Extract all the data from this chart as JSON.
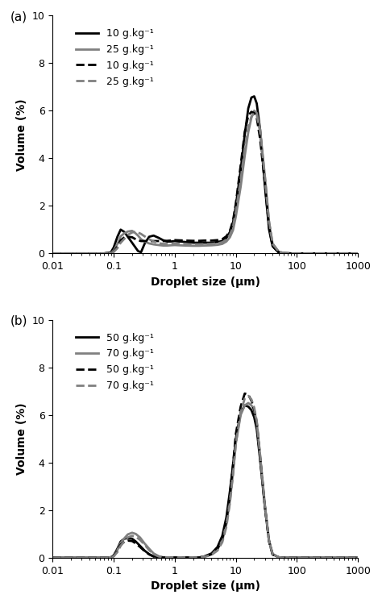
{
  "panel_a": {
    "label": "(a)",
    "legend": [
      {
        "label": "10 g.kg⁻¹",
        "color": "#000000",
        "linestyle": "solid",
        "linewidth": 2.0
      },
      {
        "label": "25 g.kg⁻¹",
        "color": "#808080",
        "linestyle": "solid",
        "linewidth": 2.0
      },
      {
        "label": "10 g.kg⁻¹",
        "color": "#000000",
        "linestyle": "dashed",
        "linewidth": 2.0
      },
      {
        "label": "25 g.kg⁻¹",
        "color": "#808080",
        "linestyle": "dashed",
        "linewidth": 2.0
      }
    ],
    "curves": [
      {
        "color": "#000000",
        "linestyle": "solid",
        "linewidth": 2.0,
        "x": [
          0.01,
          0.07,
          0.09,
          0.1,
          0.115,
          0.13,
          0.15,
          0.17,
          0.2,
          0.22,
          0.25,
          0.28,
          0.32,
          0.38,
          0.45,
          0.55,
          0.65,
          0.75,
          0.85,
          1.0,
          1.2,
          1.5,
          2.0,
          2.5,
          3.0,
          4.0,
          5.0,
          6.0,
          7.0,
          8.0,
          9.0,
          10.0,
          12.0,
          14.0,
          16.0,
          18.0,
          20.0,
          22.0,
          25.0,
          30.0,
          35.0,
          40.0,
          50.0,
          60.0,
          80.0,
          100.0,
          200.0,
          1000.0
        ],
        "y": [
          0,
          0,
          0.05,
          0.25,
          0.7,
          1.0,
          0.9,
          0.7,
          0.45,
          0.3,
          0.1,
          0.05,
          0.4,
          0.7,
          0.75,
          0.65,
          0.55,
          0.5,
          0.5,
          0.52,
          0.5,
          0.48,
          0.45,
          0.45,
          0.45,
          0.45,
          0.48,
          0.52,
          0.65,
          0.9,
          1.3,
          2.0,
          3.5,
          5.0,
          6.1,
          6.55,
          6.6,
          6.3,
          5.2,
          2.8,
          1.0,
          0.3,
          0.05,
          0.01,
          0.0,
          0.0,
          0.0,
          0.0
        ]
      },
      {
        "color": "#808080",
        "linestyle": "solid",
        "linewidth": 2.0,
        "x": [
          0.01,
          0.07,
          0.09,
          0.1,
          0.115,
          0.13,
          0.15,
          0.17,
          0.2,
          0.22,
          0.25,
          0.28,
          0.32,
          0.38,
          0.45,
          0.55,
          0.65,
          0.75,
          0.85,
          1.0,
          1.2,
          1.5,
          2.0,
          2.5,
          3.0,
          4.0,
          5.0,
          6.0,
          7.0,
          8.0,
          9.0,
          10.0,
          12.0,
          14.0,
          16.0,
          18.0,
          20.0,
          22.0,
          25.0,
          30.0,
          35.0,
          40.0,
          50.0,
          60.0,
          80.0,
          100.0,
          200.0,
          1000.0
        ],
        "y": [
          0,
          0,
          0.02,
          0.12,
          0.4,
          0.72,
          0.85,
          0.92,
          0.95,
          0.88,
          0.75,
          0.6,
          0.5,
          0.42,
          0.38,
          0.35,
          0.33,
          0.33,
          0.34,
          0.35,
          0.34,
          0.33,
          0.32,
          0.32,
          0.33,
          0.34,
          0.36,
          0.4,
          0.5,
          0.68,
          0.98,
          1.55,
          2.8,
          4.1,
          5.1,
          5.7,
          6.0,
          5.9,
          5.2,
          3.2,
          1.3,
          0.4,
          0.08,
          0.02,
          0.0,
          0.0,
          0.0,
          0.0
        ]
      },
      {
        "color": "#000000",
        "linestyle": "dashed",
        "linewidth": 2.0,
        "x": [
          0.01,
          0.07,
          0.09,
          0.1,
          0.115,
          0.13,
          0.15,
          0.17,
          0.2,
          0.22,
          0.25,
          0.28,
          0.32,
          0.38,
          0.45,
          0.55,
          0.65,
          0.75,
          0.85,
          1.0,
          1.2,
          1.5,
          2.0,
          2.5,
          3.0,
          4.0,
          5.0,
          6.0,
          7.0,
          8.0,
          9.0,
          10.0,
          12.0,
          14.0,
          16.0,
          18.0,
          20.0,
          22.0,
          25.0,
          30.0,
          35.0,
          40.0,
          50.0,
          60.0,
          80.0,
          100.0,
          200.0,
          1000.0
        ],
        "y": [
          0,
          0,
          0.02,
          0.08,
          0.28,
          0.55,
          0.68,
          0.7,
          0.68,
          0.62,
          0.55,
          0.52,
          0.52,
          0.52,
          0.52,
          0.52,
          0.52,
          0.53,
          0.54,
          0.56,
          0.55,
          0.54,
          0.53,
          0.53,
          0.54,
          0.54,
          0.56,
          0.6,
          0.72,
          0.95,
          1.38,
          2.1,
          3.7,
          5.1,
          5.8,
          5.95,
          5.9,
          5.7,
          4.8,
          2.9,
          1.1,
          0.3,
          0.05,
          0.01,
          0.0,
          0.0,
          0.0,
          0.0
        ]
      },
      {
        "color": "#808080",
        "linestyle": "dashed",
        "linewidth": 2.0,
        "x": [
          0.01,
          0.07,
          0.09,
          0.1,
          0.115,
          0.13,
          0.15,
          0.17,
          0.2,
          0.22,
          0.25,
          0.28,
          0.32,
          0.38,
          0.45,
          0.55,
          0.65,
          0.75,
          0.85,
          1.0,
          1.2,
          1.5,
          2.0,
          2.5,
          3.0,
          4.0,
          5.0,
          6.0,
          7.0,
          8.0,
          9.0,
          10.0,
          12.0,
          14.0,
          16.0,
          18.0,
          20.0,
          22.0,
          25.0,
          30.0,
          35.0,
          40.0,
          50.0,
          60.0,
          80.0,
          100.0,
          200.0,
          1000.0
        ],
        "y": [
          0,
          0,
          0.02,
          0.07,
          0.22,
          0.45,
          0.62,
          0.78,
          0.88,
          0.9,
          0.88,
          0.82,
          0.72,
          0.6,
          0.5,
          0.43,
          0.4,
          0.4,
          0.4,
          0.41,
          0.4,
          0.39,
          0.38,
          0.38,
          0.39,
          0.4,
          0.42,
          0.47,
          0.58,
          0.78,
          1.12,
          1.75,
          3.1,
          4.4,
          5.3,
          5.75,
          5.9,
          5.82,
          5.1,
          3.2,
          1.35,
          0.42,
          0.08,
          0.02,
          0.0,
          0.0,
          0.0,
          0.0
        ]
      }
    ]
  },
  "panel_b": {
    "label": "(b)",
    "legend": [
      {
        "label": "50 g.kg⁻¹",
        "color": "#000000",
        "linestyle": "solid",
        "linewidth": 2.0
      },
      {
        "label": "70 g.kg⁻¹",
        "color": "#808080",
        "linestyle": "solid",
        "linewidth": 2.0
      },
      {
        "label": "50 g.kg⁻¹",
        "color": "#000000",
        "linestyle": "dashed",
        "linewidth": 2.0
      },
      {
        "label": "70 g.kg⁻¹",
        "color": "#808080",
        "linestyle": "dashed",
        "linewidth": 2.0
      }
    ],
    "curves": [
      {
        "color": "#000000",
        "linestyle": "solid",
        "linewidth": 2.0,
        "x": [
          0.01,
          0.07,
          0.09,
          0.1,
          0.115,
          0.13,
          0.15,
          0.17,
          0.2,
          0.23,
          0.27,
          0.32,
          0.38,
          0.45,
          0.55,
          0.65,
          0.75,
          0.85,
          1.0,
          1.2,
          1.5,
          2.0,
          2.5,
          3.0,
          4.0,
          5.0,
          6.0,
          7.0,
          8.0,
          9.0,
          10.0,
          12.0,
          14.0,
          16.0,
          18.0,
          20.0,
          22.0,
          25.0,
          30.0,
          35.0,
          40.0,
          50.0,
          60.0,
          80.0,
          100.0,
          200.0,
          1000.0
        ],
        "y": [
          0,
          0,
          0.02,
          0.1,
          0.38,
          0.68,
          0.8,
          0.82,
          0.8,
          0.68,
          0.5,
          0.3,
          0.15,
          0.06,
          0.02,
          0.01,
          0.01,
          0.01,
          0.01,
          0.01,
          0.01,
          0.01,
          0.01,
          0.05,
          0.18,
          0.45,
          0.92,
          1.7,
          2.8,
          3.9,
          5.0,
          6.1,
          6.4,
          6.35,
          6.2,
          5.9,
          5.4,
          4.1,
          2.1,
          0.7,
          0.15,
          0.02,
          0.0,
          0.0,
          0.0,
          0.0,
          0.0
        ]
      },
      {
        "color": "#808080",
        "linestyle": "solid",
        "linewidth": 2.0,
        "x": [
          0.01,
          0.07,
          0.09,
          0.1,
          0.115,
          0.13,
          0.15,
          0.17,
          0.2,
          0.23,
          0.27,
          0.32,
          0.38,
          0.45,
          0.55,
          0.65,
          0.75,
          0.85,
          1.0,
          1.2,
          1.5,
          2.0,
          2.5,
          3.0,
          4.0,
          5.0,
          6.0,
          7.0,
          8.0,
          9.0,
          10.0,
          12.0,
          14.0,
          16.0,
          18.0,
          20.0,
          22.0,
          25.0,
          30.0,
          35.0,
          40.0,
          50.0,
          60.0,
          80.0,
          100.0,
          200.0,
          1000.0
        ],
        "y": [
          0,
          0,
          0.02,
          0.08,
          0.32,
          0.62,
          0.82,
          0.98,
          1.05,
          1.0,
          0.85,
          0.6,
          0.38,
          0.18,
          0.06,
          0.02,
          0.01,
          0.01,
          0.01,
          0.01,
          0.01,
          0.01,
          0.01,
          0.04,
          0.14,
          0.35,
          0.72,
          1.4,
          2.4,
          3.55,
          4.8,
          6.0,
          6.4,
          6.5,
          6.4,
          6.2,
          5.7,
          4.3,
          2.2,
          0.72,
          0.16,
          0.02,
          0.0,
          0.0,
          0.0,
          0.0,
          0.0
        ]
      },
      {
        "color": "#000000",
        "linestyle": "dashed",
        "linewidth": 2.0,
        "x": [
          0.01,
          0.07,
          0.09,
          0.1,
          0.115,
          0.13,
          0.15,
          0.17,
          0.2,
          0.23,
          0.27,
          0.32,
          0.38,
          0.45,
          0.55,
          0.65,
          0.75,
          0.85,
          1.0,
          1.2,
          1.5,
          2.0,
          2.5,
          3.0,
          4.0,
          5.0,
          6.0,
          7.0,
          8.0,
          9.0,
          10.0,
          12.0,
          14.0,
          16.0,
          18.0,
          20.0,
          22.0,
          25.0,
          30.0,
          35.0,
          40.0,
          50.0,
          60.0,
          80.0,
          100.0,
          200.0,
          1000.0
        ],
        "y": [
          0,
          0,
          0.01,
          0.07,
          0.28,
          0.55,
          0.68,
          0.72,
          0.7,
          0.6,
          0.45,
          0.28,
          0.14,
          0.05,
          0.02,
          0.01,
          0.01,
          0.01,
          0.01,
          0.01,
          0.01,
          0.01,
          0.01,
          0.04,
          0.15,
          0.38,
          0.8,
          1.55,
          2.65,
          3.9,
          5.2,
          6.35,
          6.9,
          6.85,
          6.6,
          6.2,
          5.65,
          4.2,
          2.1,
          0.68,
          0.13,
          0.02,
          0.0,
          0.0,
          0.0,
          0.0,
          0.0
        ]
      },
      {
        "color": "#808080",
        "linestyle": "dashed",
        "linewidth": 2.0,
        "x": [
          0.01,
          0.07,
          0.09,
          0.1,
          0.115,
          0.13,
          0.15,
          0.17,
          0.2,
          0.23,
          0.27,
          0.32,
          0.38,
          0.45,
          0.55,
          0.65,
          0.75,
          0.85,
          1.0,
          1.2,
          1.5,
          2.0,
          2.5,
          3.0,
          4.0,
          5.0,
          6.0,
          7.0,
          8.0,
          9.0,
          10.0,
          12.0,
          14.0,
          16.0,
          18.0,
          20.0,
          22.0,
          25.0,
          30.0,
          35.0,
          40.0,
          50.0,
          60.0,
          80.0,
          100.0,
          200.0,
          1000.0
        ],
        "y": [
          0,
          0,
          0.01,
          0.06,
          0.24,
          0.5,
          0.7,
          0.85,
          0.92,
          0.88,
          0.75,
          0.55,
          0.32,
          0.15,
          0.05,
          0.02,
          0.01,
          0.01,
          0.01,
          0.01,
          0.01,
          0.01,
          0.01,
          0.03,
          0.12,
          0.3,
          0.65,
          1.3,
          2.3,
          3.5,
          4.8,
          6.1,
          6.7,
          6.8,
          6.65,
          6.3,
          5.75,
          4.3,
          2.15,
          0.7,
          0.15,
          0.02,
          0.0,
          0.0,
          0.0,
          0.0,
          0.0
        ]
      }
    ]
  },
  "xlabel": "Droplet size (μm)",
  "ylabel": "Volume (%)",
  "xlim": [
    0.01,
    1000
  ],
  "ylim": [
    0,
    10
  ],
  "yticks": [
    0,
    2,
    4,
    6,
    8,
    10
  ],
  "xtick_labels": [
    "0.01",
    "0.1",
    "1",
    "10",
    "100",
    "1000"
  ],
  "xtick_vals": [
    0.01,
    0.1,
    1,
    10,
    100,
    1000
  ],
  "background_color": "#ffffff",
  "panel_label_fontsize": 11,
  "axis_label_fontsize": 10,
  "tick_fontsize": 9,
  "legend_fontsize": 9
}
